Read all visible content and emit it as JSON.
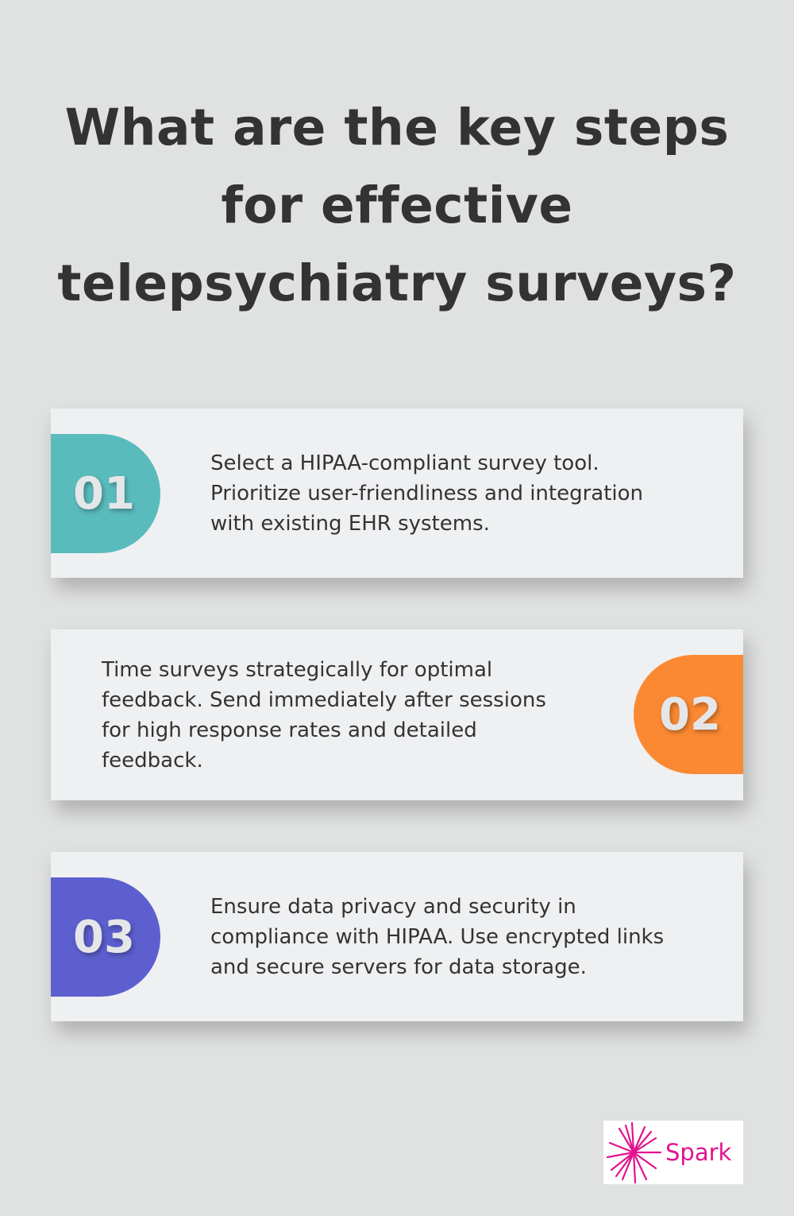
{
  "title": "What are the key steps for effective telepsychiatry surveys?",
  "steps": [
    {
      "number": "01",
      "text": "Select a HIPAA-compliant survey tool. Prioritize user-friendliness and integration with existing EHR systems.",
      "color": "#5abbbd"
    },
    {
      "number": "02",
      "text": "Time surveys strategically for optimal feedback. Send immediately after sessions for high response rates and detailed feedback.",
      "color": "#fb8933"
    },
    {
      "number": "03",
      "text": "Ensure data privacy and security in compliance with HIPAA. Use encrypted links and secure servers for data storage.",
      "color": "#5d5fcf"
    }
  ],
  "logo": {
    "text": "Spark",
    "color": "#e2128f"
  }
}
